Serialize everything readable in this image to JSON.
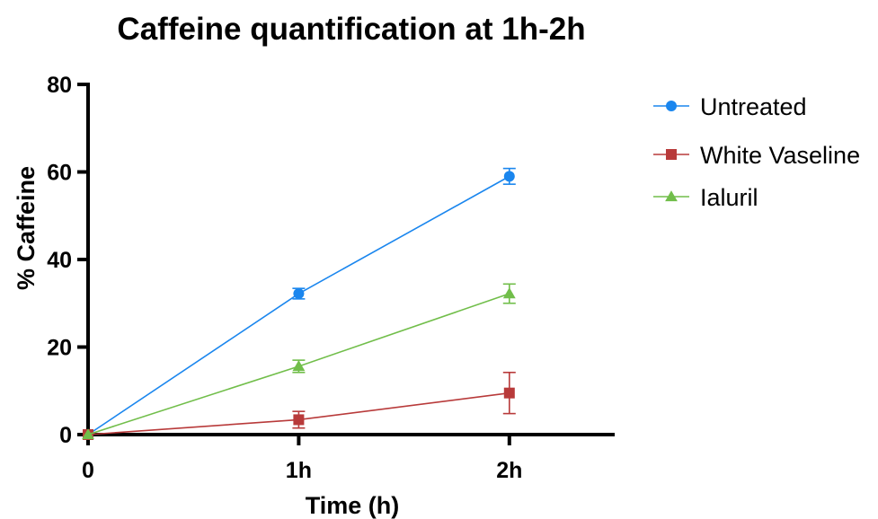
{
  "chart_data": {
    "type": "line",
    "title": "Caffeine quantification at 1h-2h",
    "xlabel": "Time (h)",
    "ylabel": "% Caffeine",
    "x_categories": [
      "0",
      "1h",
      "2h"
    ],
    "x_values": [
      0,
      1,
      2
    ],
    "xlim": [
      0,
      2.5
    ],
    "ylim": [
      0,
      80
    ],
    "y_ticks": [
      0,
      20,
      40,
      60,
      80
    ],
    "y_tick_labels": [
      "0",
      "20",
      "40",
      "60",
      "80"
    ],
    "grid": false,
    "legend_position": "right",
    "series": [
      {
        "name": "Untreated",
        "color": "#1a86ee",
        "marker": "circle",
        "values": [
          0,
          32.2,
          59.0
        ],
        "errors": [
          0,
          1.2,
          1.8
        ]
      },
      {
        "name": "White Vaseline",
        "color": "#b83a3a",
        "marker": "square",
        "values": [
          0,
          3.4,
          9.5
        ],
        "errors": [
          0,
          1.9,
          4.7
        ]
      },
      {
        "name": "Ialuril",
        "color": "#71be4a",
        "marker": "triangle",
        "values": [
          0,
          15.6,
          32.2
        ],
        "errors": [
          0,
          1.4,
          2.2
        ]
      }
    ]
  }
}
